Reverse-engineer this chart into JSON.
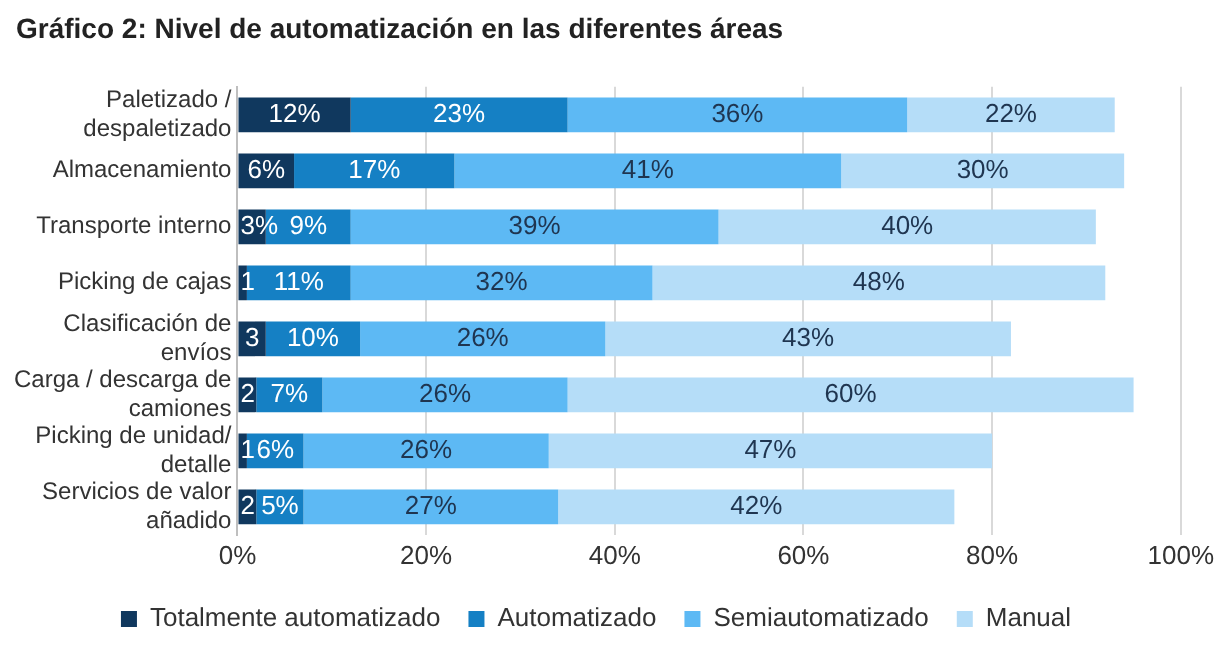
{
  "chart_data": {
    "type": "bar",
    "orientation": "horizontal",
    "stacked": true,
    "title": "Gráfico 2: Nivel de automatización en las diferentes áreas",
    "categories": [
      "Paletizado / despaletizado",
      "Almacenamiento",
      "Transporte interno",
      "Picking de cajas",
      "Clasificación de envíos",
      "Carga / descarga de camiones",
      "Picking de unidad/ detalle",
      "Servicios de valor añadido"
    ],
    "series": [
      {
        "name": "Totalmente automatizado",
        "color": "#10385e",
        "values": [
          12,
          6,
          3,
          1,
          3,
          2,
          1,
          2
        ],
        "value_labels": [
          "12%",
          "6%",
          "3%",
          "1",
          "3",
          "2",
          "1",
          "2"
        ]
      },
      {
        "name": "Automatizado",
        "color": "#1580c4",
        "values": [
          23,
          17,
          9,
          11,
          10,
          7,
          6,
          5
        ],
        "value_labels": [
          "23%",
          "17%",
          "9%",
          "11%",
          "10%",
          "7%",
          "6%",
          "5%"
        ]
      },
      {
        "name": "Semiautomatizado",
        "color": "#5db9f4",
        "values": [
          36,
          41,
          39,
          32,
          26,
          26,
          26,
          27
        ],
        "value_labels": [
          "36%",
          "41%",
          "39%",
          "32%",
          "26%",
          "26%",
          "26%",
          "27%"
        ]
      },
      {
        "name": "Manual",
        "color": "#b5ddf8",
        "values": [
          22,
          30,
          40,
          48,
          43,
          60,
          47,
          42
        ],
        "value_labels": [
          "22%",
          "30%",
          "40%",
          "48%",
          "43%",
          "60%",
          "47%",
          "42%"
        ]
      }
    ],
    "xlim": [
      0,
      100
    ],
    "xticks": [
      {
        "value": 0,
        "label": "0%"
      },
      {
        "value": 20,
        "label": "20%"
      },
      {
        "value": 40,
        "label": "40%"
      },
      {
        "value": 60,
        "label": "60%"
      },
      {
        "value": 80,
        "label": "80%"
      },
      {
        "value": 100,
        "label": "100%"
      }
    ],
    "grid": "x",
    "legend": "bottom"
  }
}
